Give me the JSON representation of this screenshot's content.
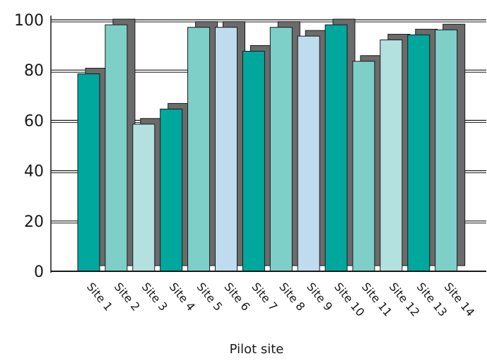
{
  "chart_data": {
    "type": "bar",
    "title": "",
    "xlabel": "Pilot site",
    "ylabel": "",
    "ylim": [
      0,
      100
    ],
    "yticks": [
      0,
      20,
      40,
      60,
      80,
      100
    ],
    "grid": "horizontal",
    "legend": "none",
    "categories": [
      "Site 1",
      "Site 2",
      "Site 3",
      "Site 4",
      "Site 5",
      "Site 6",
      "Site 7",
      "Site 8",
      "Site 9",
      "Site 10",
      "Site 11",
      "Site 12",
      "Site 13",
      "Site 14"
    ],
    "values": [
      78.5,
      98,
      58.5,
      64.5,
      97,
      97,
      87.5,
      97,
      93.5,
      98,
      83.5,
      92,
      94,
      96
    ],
    "bar_colors": [
      "#00a79d",
      "#7ecfc8",
      "#b3e1df",
      "#00a79d",
      "#7ecfc8",
      "#bfdcee",
      "#00a79d",
      "#7ecfc8",
      "#bfdcee",
      "#00a79d",
      "#7ecfc8",
      "#b3e1df",
      "#00a79d",
      "#7ecfc8"
    ],
    "shadow_color": "#6b6b6b"
  }
}
